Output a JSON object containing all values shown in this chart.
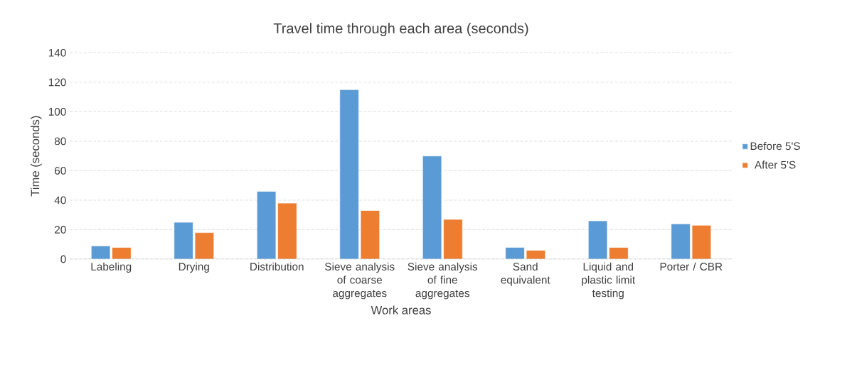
{
  "chart_data": {
    "type": "bar",
    "title": "Travel time through  each area (seconds)",
    "xlabel": "Work areas",
    "ylabel": "Time (seconds)",
    "categories": [
      "Labeling",
      "Drying",
      "Distribution",
      "Sieve analysis of coarse aggregates",
      "Sieve analysis of fine aggregates",
      "Sand equivalent",
      "Liquid and plastic limit testing",
      "Porter / CBR"
    ],
    "series": [
      {
        "name": "Before 5'S",
        "color": "#5b9bd5",
        "values": [
          9,
          25,
          46,
          115,
          70,
          8,
          26,
          24
        ]
      },
      {
        "name": "After 5'S",
        "color": "#ed7d31",
        "values": [
          8,
          18,
          38,
          33,
          27,
          6,
          8,
          23
        ]
      }
    ],
    "ylim": [
      0,
      140
    ],
    "yticks": [
      0,
      20,
      40,
      60,
      80,
      100,
      120,
      140
    ],
    "grid": "y",
    "legend": "right"
  }
}
